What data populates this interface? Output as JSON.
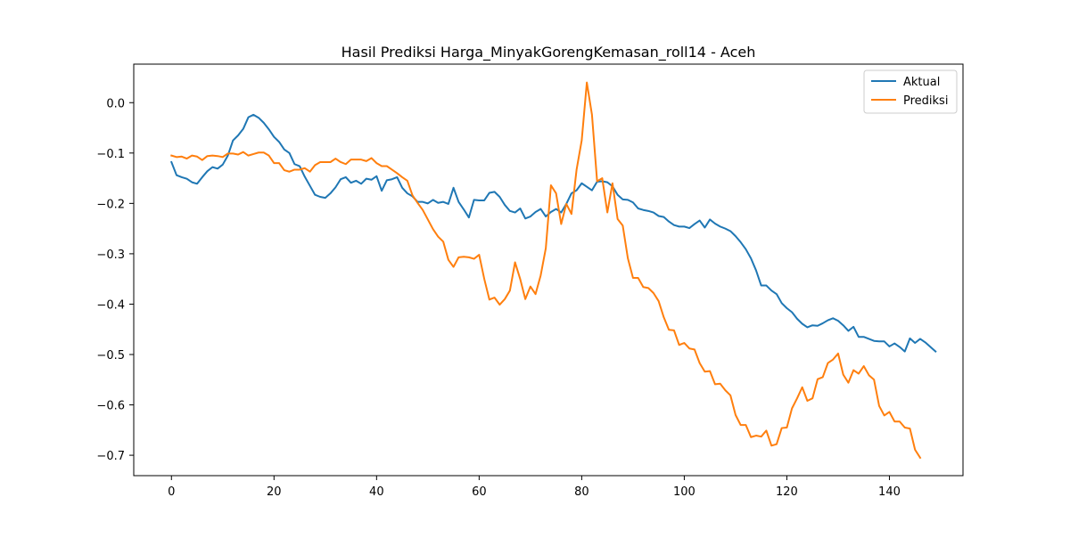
{
  "chart_data": {
    "type": "line",
    "title": "Hasil Prediksi Harga_MinyakGorengKemasan_roll14 - Aceh",
    "xlabel": "",
    "ylabel": "",
    "xlim": [
      -7.35,
      154.35
    ],
    "ylim": [
      -0.7405,
      0.0765
    ],
    "xticks": [
      0,
      20,
      40,
      60,
      80,
      100,
      120,
      140
    ],
    "yticks": [
      0.0,
      -0.1,
      -0.2,
      -0.3,
      -0.4,
      -0.5,
      -0.6,
      -0.7
    ],
    "xtick_labels": [
      "0",
      "20",
      "40",
      "60",
      "80",
      "100",
      "120",
      "140"
    ],
    "ytick_labels": [
      "0.0",
      "−0.1",
      "−0.2",
      "−0.3",
      "−0.4",
      "−0.5",
      "−0.6",
      "−0.7"
    ],
    "grid": false,
    "legend_position": "top-right",
    "series": [
      {
        "name": "Aktual",
        "color": "#1f77b4",
        "x_start": 0,
        "values": [
          -0.118,
          -0.144,
          -0.148,
          -0.151,
          -0.158,
          -0.161,
          -0.148,
          -0.136,
          -0.128,
          -0.131,
          -0.123,
          -0.105,
          -0.075,
          -0.065,
          -0.052,
          -0.029,
          -0.024,
          -0.03,
          -0.04,
          -0.053,
          -0.068,
          -0.078,
          -0.093,
          -0.1,
          -0.122,
          -0.126,
          -0.147,
          -0.165,
          -0.183,
          -0.187,
          -0.189,
          -0.18,
          -0.168,
          -0.152,
          -0.148,
          -0.159,
          -0.155,
          -0.161,
          -0.151,
          -0.153,
          -0.146,
          -0.175,
          -0.154,
          -0.152,
          -0.148,
          -0.169,
          -0.18,
          -0.186,
          -0.197,
          -0.197,
          -0.2,
          -0.193,
          -0.199,
          -0.197,
          -0.201,
          -0.169,
          -0.197,
          -0.212,
          -0.228,
          -0.193,
          -0.194,
          -0.194,
          -0.179,
          -0.177,
          -0.187,
          -0.203,
          -0.215,
          -0.218,
          -0.21,
          -0.23,
          -0.226,
          -0.217,
          -0.211,
          -0.226,
          -0.217,
          -0.211,
          -0.218,
          -0.201,
          -0.18,
          -0.174,
          -0.16,
          -0.167,
          -0.174,
          -0.157,
          -0.156,
          -0.158,
          -0.166,
          -0.183,
          -0.192,
          -0.193,
          -0.198,
          -0.21,
          -0.213,
          -0.215,
          -0.218,
          -0.225,
          -0.227,
          -0.236,
          -0.243,
          -0.246,
          -0.246,
          -0.249,
          -0.241,
          -0.234,
          -0.248,
          -0.232,
          -0.24,
          -0.246,
          -0.25,
          -0.255,
          -0.265,
          -0.277,
          -0.291,
          -0.309,
          -0.333,
          -0.363,
          -0.363,
          -0.373,
          -0.38,
          -0.398,
          -0.408,
          -0.416,
          -0.429,
          -0.439,
          -0.446,
          -0.442,
          -0.443,
          -0.438,
          -0.432,
          -0.428,
          -0.433,
          -0.442,
          -0.453,
          -0.445,
          -0.465,
          -0.465,
          -0.469,
          -0.473,
          -0.474,
          -0.474,
          -0.484,
          -0.478,
          -0.485,
          -0.494,
          -0.468,
          -0.477,
          -0.469,
          -0.476,
          -0.485,
          -0.494
        ]
      },
      {
        "name": "Prediksi",
        "color": "#ff7f0e",
        "x_start": 0,
        "values": [
          -0.105,
          -0.108,
          -0.107,
          -0.111,
          -0.105,
          -0.107,
          -0.114,
          -0.106,
          -0.105,
          -0.106,
          -0.108,
          -0.101,
          -0.101,
          -0.103,
          -0.098,
          -0.105,
          -0.102,
          -0.099,
          -0.099,
          -0.105,
          -0.12,
          -0.12,
          -0.134,
          -0.137,
          -0.133,
          -0.133,
          -0.13,
          -0.137,
          -0.124,
          -0.118,
          -0.118,
          -0.118,
          -0.111,
          -0.118,
          -0.122,
          -0.113,
          -0.113,
          -0.113,
          -0.116,
          -0.11,
          -0.12,
          -0.126,
          -0.126,
          -0.133,
          -0.14,
          -0.148,
          -0.155,
          -0.184,
          -0.199,
          -0.213,
          -0.232,
          -0.251,
          -0.266,
          -0.276,
          -0.312,
          -0.326,
          -0.307,
          -0.306,
          -0.307,
          -0.31,
          -0.302,
          -0.35,
          -0.391,
          -0.387,
          -0.401,
          -0.39,
          -0.373,
          -0.317,
          -0.35,
          -0.39,
          -0.365,
          -0.38,
          -0.343,
          -0.289,
          -0.164,
          -0.18,
          -0.241,
          -0.201,
          -0.221,
          -0.133,
          -0.075,
          0.04,
          -0.024,
          -0.156,
          -0.15,
          -0.218,
          -0.16,
          -0.231,
          -0.244,
          -0.309,
          -0.348,
          -0.348,
          -0.366,
          -0.368,
          -0.378,
          -0.394,
          -0.426,
          -0.451,
          -0.452,
          -0.481,
          -0.477,
          -0.488,
          -0.49,
          -0.517,
          -0.534,
          -0.533,
          -0.559,
          -0.558,
          -0.571,
          -0.581,
          -0.62,
          -0.64,
          -0.64,
          -0.664,
          -0.661,
          -0.663,
          -0.651,
          -0.681,
          -0.678,
          -0.646,
          -0.645,
          -0.607,
          -0.587,
          -0.565,
          -0.592,
          -0.587,
          -0.549,
          -0.545,
          -0.517,
          -0.51,
          -0.498,
          -0.54,
          -0.556,
          -0.531,
          -0.538,
          -0.523,
          -0.541,
          -0.55,
          -0.602,
          -0.621,
          -0.614,
          -0.633,
          -0.633,
          -0.645,
          -0.647,
          -0.689,
          -0.705
        ]
      }
    ]
  }
}
